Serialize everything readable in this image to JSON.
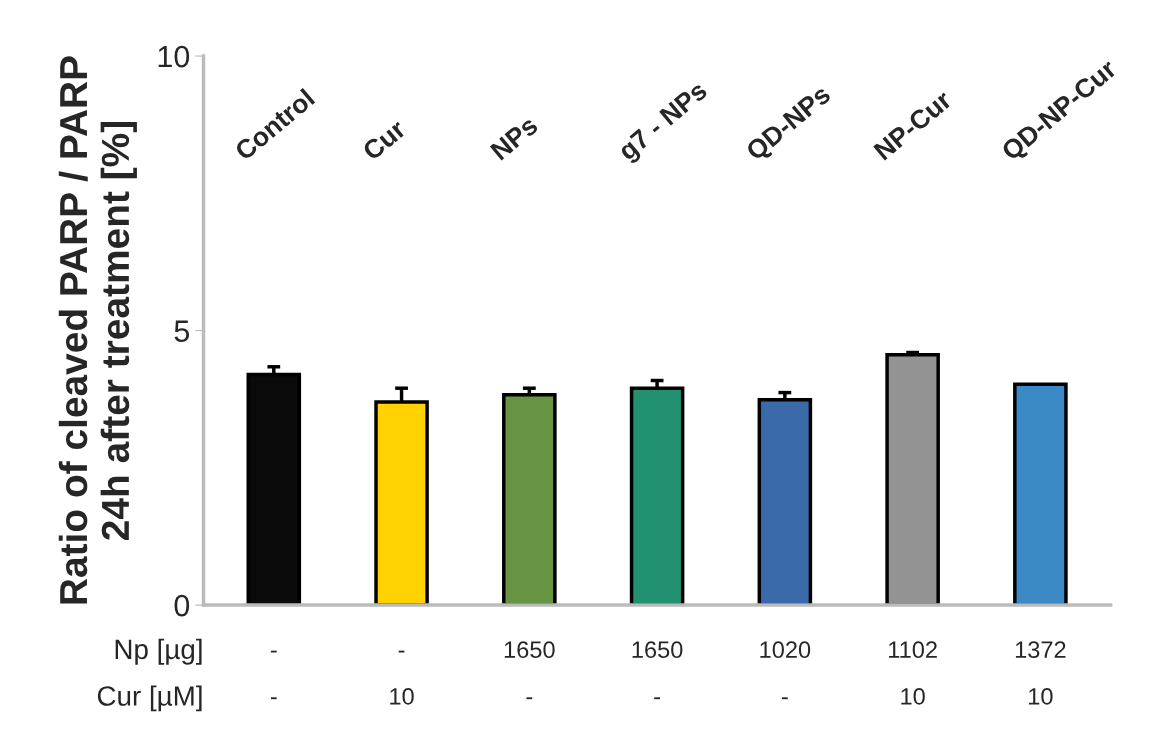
{
  "chart_data": {
    "type": "bar",
    "ylabel": "Ratio of cleaved PARP / PARP\n24h after treatment [%]",
    "categories": [
      "Control",
      "Cur",
      "NPs",
      "g7 - NPs",
      "QD-NPs",
      "NP-Cur",
      "QD-NP-Cur"
    ],
    "values": [
      4.2,
      3.7,
      3.83,
      3.95,
      3.74,
      4.56,
      4.02
    ],
    "errors": [
      [
        4.2,
        4.34
      ],
      [
        3.7,
        3.95
      ],
      [
        3.83,
        3.95
      ],
      [
        3.95,
        4.09
      ],
      [
        3.74,
        3.87
      ],
      [
        4.56,
        4.6
      ],
      null
    ],
    "colors": [
      "#0a0a0a",
      "#ffd200",
      "#679543",
      "#219170",
      "#3b6aaa",
      "#939393",
      "#3b8ac6"
    ],
    "ylim": [
      0,
      10
    ],
    "yticks": [
      0,
      5,
      10
    ],
    "grid": false,
    "legend": false,
    "annotations": [
      "Np [µg]",
      "-",
      "-",
      "1650",
      "1650",
      "1020",
      "1102",
      "1372",
      "Cur [µM]",
      "-",
      "10",
      "-",
      "-",
      "-",
      "10",
      "10"
    ]
  }
}
